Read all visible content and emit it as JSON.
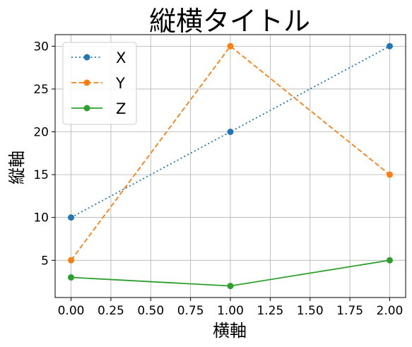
{
  "chart_data": {
    "type": "line",
    "title": "縦横タイトル",
    "xlabel": "横軸",
    "ylabel": "縦軸",
    "x": [
      0,
      1,
      2
    ],
    "xlim": [
      -0.1,
      2.1
    ],
    "ylim": [
      0.65,
      31.35
    ],
    "xticks": [
      0,
      0.25,
      0.5,
      0.75,
      1,
      1.25,
      1.5,
      1.75,
      2
    ],
    "xtick_labels": [
      "0.00",
      "0.25",
      "0.50",
      "0.75",
      "1.00",
      "1.25",
      "1.50",
      "1.75",
      "2.00"
    ],
    "yticks": [
      5,
      10,
      15,
      20,
      25,
      30
    ],
    "ytick_labels": [
      "5",
      "10",
      "15",
      "20",
      "25",
      "30"
    ],
    "grid": true,
    "legend_position": "top-left",
    "series": [
      {
        "name": "X",
        "values": [
          10,
          20,
          30
        ],
        "color": "#1f77b4",
        "linestyle": "dotted",
        "marker": "circle"
      },
      {
        "name": "Y",
        "values": [
          5,
          30,
          15
        ],
        "color": "#ff7f0e",
        "linestyle": "dashed",
        "marker": "circle"
      },
      {
        "name": "Z",
        "values": [
          3,
          2,
          5
        ],
        "color": "#2ca02c",
        "linestyle": "solid",
        "marker": "circle"
      }
    ]
  }
}
